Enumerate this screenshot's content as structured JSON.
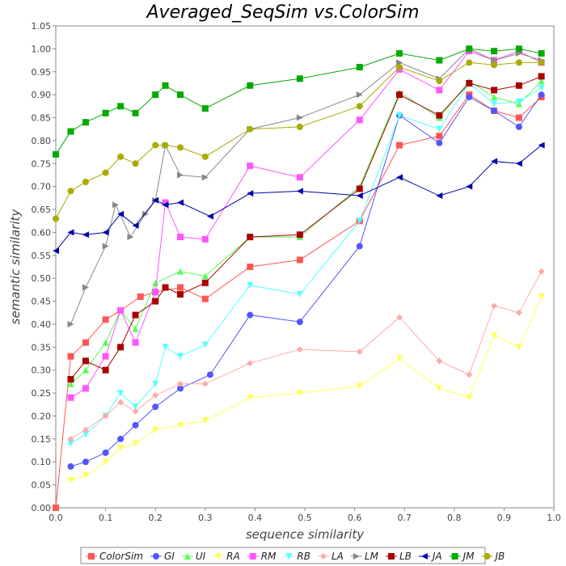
{
  "chart_data": {
    "type": "line",
    "title": "Averaged_SeqSim vs.ColorSim",
    "xlabel": "sequence similarity",
    "ylabel": "semantic similarity",
    "xlim": [
      0.0,
      1.0
    ],
    "ylim": [
      0.0,
      1.05
    ],
    "x_ticks": [
      "0.0",
      "0.1",
      "0.2",
      "0.3",
      "0.4",
      "0.5",
      "0.6",
      "0.7",
      "0.8",
      "0.9",
      "1.0"
    ],
    "y_ticks": [
      "0.00",
      "0.05",
      "0.10",
      "0.15",
      "0.20",
      "0.25",
      "0.30",
      "0.35",
      "0.40",
      "0.45",
      "0.50",
      "0.55",
      "0.60",
      "0.65",
      "0.70",
      "0.75",
      "0.80",
      "0.85",
      "0.90",
      "0.95",
      "1.00",
      "1.05"
    ],
    "grid": false,
    "legend_position": "bottom",
    "series": [
      {
        "name": "ColorSim",
        "color": "#ff5555",
        "marker": "square",
        "x": [
          0.0,
          0.03,
          0.06,
          0.1,
          0.13,
          0.17,
          0.2,
          0.25,
          0.3,
          0.39,
          0.49,
          0.61,
          0.69,
          0.77,
          0.83,
          0.88,
          0.93,
          0.975
        ],
        "y": [
          0.0,
          0.33,
          0.36,
          0.41,
          0.43,
          0.46,
          0.47,
          0.48,
          0.455,
          0.525,
          0.54,
          0.625,
          0.79,
          0.81,
          0.9,
          0.865,
          0.85,
          0.895
        ]
      },
      {
        "name": "GI",
        "color": "#5555ff",
        "marker": "circle",
        "x": [
          0.03,
          0.06,
          0.1,
          0.13,
          0.16,
          0.2,
          0.25,
          0.31,
          0.39,
          0.49,
          0.61,
          0.69,
          0.77,
          0.83,
          0.88,
          0.93,
          0.975
        ],
        "y": [
          0.09,
          0.1,
          0.12,
          0.15,
          0.18,
          0.22,
          0.26,
          0.29,
          0.42,
          0.405,
          0.57,
          0.855,
          0.795,
          0.895,
          0.865,
          0.83,
          0.9
        ]
      },
      {
        "name": "UI",
        "color": "#55ff55",
        "marker": "triangle-up",
        "x": [
          0.03,
          0.06,
          0.1,
          0.13,
          0.16,
          0.2,
          0.25,
          0.3,
          0.39,
          0.49,
          0.61,
          0.69,
          0.77,
          0.83,
          0.88,
          0.93,
          0.975
        ],
        "y": [
          0.27,
          0.3,
          0.36,
          0.43,
          0.39,
          0.49,
          0.515,
          0.505,
          0.59,
          0.59,
          0.7,
          0.905,
          0.85,
          0.93,
          0.895,
          0.88,
          0.93
        ]
      },
      {
        "name": "RA",
        "color": "#ffff55",
        "marker": "triangle-down",
        "x": [
          0.03,
          0.06,
          0.1,
          0.13,
          0.16,
          0.2,
          0.25,
          0.3,
          0.39,
          0.49,
          0.61,
          0.69,
          0.77,
          0.83,
          0.88,
          0.93,
          0.975
        ],
        "y": [
          0.06,
          0.07,
          0.1,
          0.13,
          0.14,
          0.17,
          0.18,
          0.19,
          0.24,
          0.25,
          0.265,
          0.325,
          0.26,
          0.24,
          0.375,
          0.35,
          0.46
        ]
      },
      {
        "name": "RM",
        "color": "#ff55ff",
        "marker": "square",
        "x": [
          0.03,
          0.06,
          0.1,
          0.13,
          0.16,
          0.2,
          0.22,
          0.25,
          0.3,
          0.39,
          0.49,
          0.61,
          0.69,
          0.77,
          0.83,
          0.88,
          0.93,
          0.975
        ],
        "y": [
          0.24,
          0.26,
          0.33,
          0.43,
          0.36,
          0.47,
          0.665,
          0.59,
          0.585,
          0.745,
          0.72,
          0.845,
          0.955,
          0.91,
          0.995,
          0.975,
          0.995,
          0.97
        ]
      },
      {
        "name": "RB",
        "color": "#55ffff",
        "marker": "triangle-down",
        "x": [
          0.03,
          0.06,
          0.1,
          0.13,
          0.16,
          0.2,
          0.22,
          0.25,
          0.3,
          0.39,
          0.49,
          0.61,
          0.69,
          0.77,
          0.83,
          0.88,
          0.93,
          0.975
        ],
        "y": [
          0.14,
          0.16,
          0.2,
          0.25,
          0.22,
          0.27,
          0.35,
          0.33,
          0.355,
          0.485,
          0.465,
          0.625,
          0.855,
          0.825,
          0.925,
          0.88,
          0.885,
          0.915
        ]
      },
      {
        "name": "LA",
        "color": "#ffaaaa",
        "marker": "diamond",
        "x": [
          0.03,
          0.06,
          0.1,
          0.13,
          0.16,
          0.2,
          0.25,
          0.3,
          0.39,
          0.49,
          0.61,
          0.69,
          0.77,
          0.83,
          0.88,
          0.93,
          0.975
        ],
        "y": [
          0.15,
          0.17,
          0.2,
          0.23,
          0.21,
          0.245,
          0.27,
          0.27,
          0.315,
          0.345,
          0.34,
          0.415,
          0.32,
          0.29,
          0.44,
          0.425,
          0.515
        ]
      },
      {
        "name": "LM",
        "color": "#888888",
        "marker": "triangle-right",
        "x": [
          0.03,
          0.06,
          0.1,
          0.12,
          0.15,
          0.18,
          0.2,
          0.22,
          0.25,
          0.3,
          0.39,
          0.49,
          0.61,
          0.69,
          0.77,
          0.83,
          0.88,
          0.93,
          0.975
        ],
        "y": [
          0.4,
          0.48,
          0.57,
          0.66,
          0.59,
          0.64,
          0.67,
          0.79,
          0.725,
          0.72,
          0.825,
          0.85,
          0.9,
          0.97,
          0.935,
          1.0,
          0.975,
          0.99,
          0.975
        ]
      },
      {
        "name": "LB",
        "color": "#aa0000",
        "marker": "square",
        "x": [
          0.03,
          0.06,
          0.1,
          0.13,
          0.16,
          0.2,
          0.22,
          0.25,
          0.3,
          0.39,
          0.49,
          0.61,
          0.69,
          0.77,
          0.83,
          0.88,
          0.93,
          0.975
        ],
        "y": [
          0.28,
          0.32,
          0.3,
          0.35,
          0.42,
          0.45,
          0.48,
          0.465,
          0.49,
          0.59,
          0.595,
          0.695,
          0.9,
          0.855,
          0.925,
          0.91,
          0.92,
          0.94
        ]
      },
      {
        "name": "JA",
        "color": "#0000aa",
        "marker": "triangle-left",
        "x": [
          0.0,
          0.03,
          0.06,
          0.1,
          0.13,
          0.16,
          0.2,
          0.22,
          0.25,
          0.31,
          0.39,
          0.49,
          0.61,
          0.69,
          0.77,
          0.83,
          0.88,
          0.93,
          0.975
        ],
        "y": [
          0.56,
          0.6,
          0.595,
          0.6,
          0.64,
          0.615,
          0.67,
          0.66,
          0.665,
          0.635,
          0.685,
          0.69,
          0.68,
          0.72,
          0.68,
          0.7,
          0.755,
          0.75,
          0.79
        ]
      },
      {
        "name": "JM",
        "color": "#00aa00",
        "marker": "square",
        "x": [
          0.0,
          0.03,
          0.06,
          0.1,
          0.13,
          0.16,
          0.2,
          0.22,
          0.25,
          0.3,
          0.39,
          0.49,
          0.61,
          0.69,
          0.77,
          0.83,
          0.88,
          0.93,
          0.975
        ],
        "y": [
          0.77,
          0.82,
          0.84,
          0.86,
          0.875,
          0.86,
          0.9,
          0.92,
          0.9,
          0.87,
          0.92,
          0.935,
          0.96,
          0.99,
          0.975,
          1.0,
          0.995,
          1.0,
          0.99
        ]
      },
      {
        "name": "JB",
        "color": "#aaaa00",
        "marker": "circle",
        "x": [
          0.0,
          0.03,
          0.06,
          0.1,
          0.13,
          0.16,
          0.2,
          0.22,
          0.25,
          0.3,
          0.39,
          0.49,
          0.61,
          0.69,
          0.77,
          0.83,
          0.88,
          0.93,
          0.975
        ],
        "y": [
          0.63,
          0.69,
          0.71,
          0.73,
          0.765,
          0.75,
          0.79,
          0.79,
          0.785,
          0.765,
          0.825,
          0.83,
          0.875,
          0.96,
          0.93,
          0.97,
          0.965,
          0.97,
          0.97
        ]
      }
    ]
  }
}
